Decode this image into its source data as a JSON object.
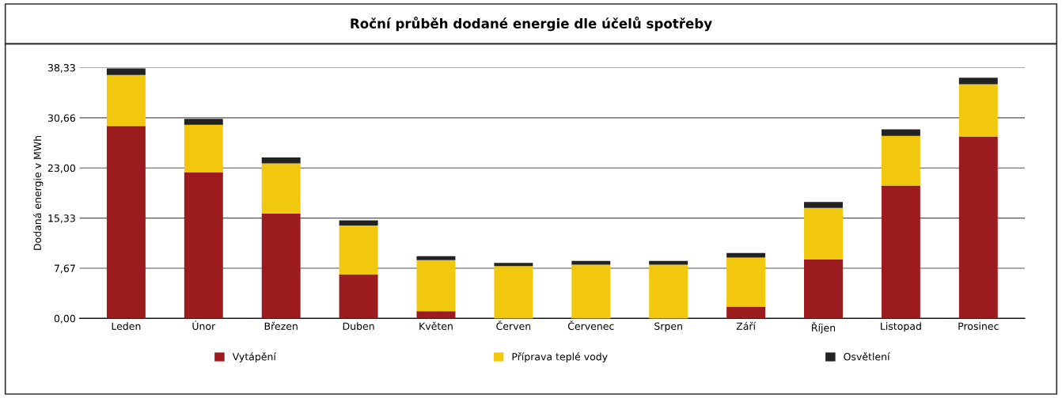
{
  "chart_data": {
    "type": "bar",
    "title": "Roční průběh dodané energie dle účelů spotřeby",
    "ylabel": "Dodaná energie v MWh",
    "categories": [
      "Leden",
      "Únor",
      "Březen",
      "Duben",
      "Květen",
      "Červen",
      "Červenec",
      "Srpen",
      "Září",
      "Říjen",
      "Listopad",
      "Prosinec"
    ],
    "stacked": true,
    "series": [
      {
        "name": "Vytápění",
        "color": "#9b1b1f",
        "values": [
          29.4,
          22.3,
          16.0,
          6.7,
          1.1,
          0,
          0,
          0,
          1.8,
          9.0,
          20.3,
          27.8
        ]
      },
      {
        "name": "Příprava teplé vody",
        "color": "#f2c80f",
        "values": [
          7.8,
          7.3,
          7.7,
          7.5,
          7.8,
          8.0,
          8.2,
          8.2,
          7.5,
          7.9,
          7.6,
          8.0
        ]
      },
      {
        "name": "Osvětlení",
        "color": "#222222",
        "values": [
          1.0,
          0.9,
          0.9,
          0.8,
          0.6,
          0.5,
          0.6,
          0.6,
          0.7,
          0.9,
          1.0,
          1.0
        ]
      }
    ],
    "ylim": [
      0,
      38.33
    ],
    "yticks": [
      {
        "value": 0,
        "label": "0,00"
      },
      {
        "value": 7.67,
        "label": "7,67"
      },
      {
        "value": 15.33,
        "label": "15,33"
      },
      {
        "value": 23.0,
        "label": "23,00"
      },
      {
        "value": 30.66,
        "label": "30,66"
      },
      {
        "value": 38.33,
        "label": "38,33"
      }
    ],
    "grid": "y",
    "legend": "bottom"
  }
}
